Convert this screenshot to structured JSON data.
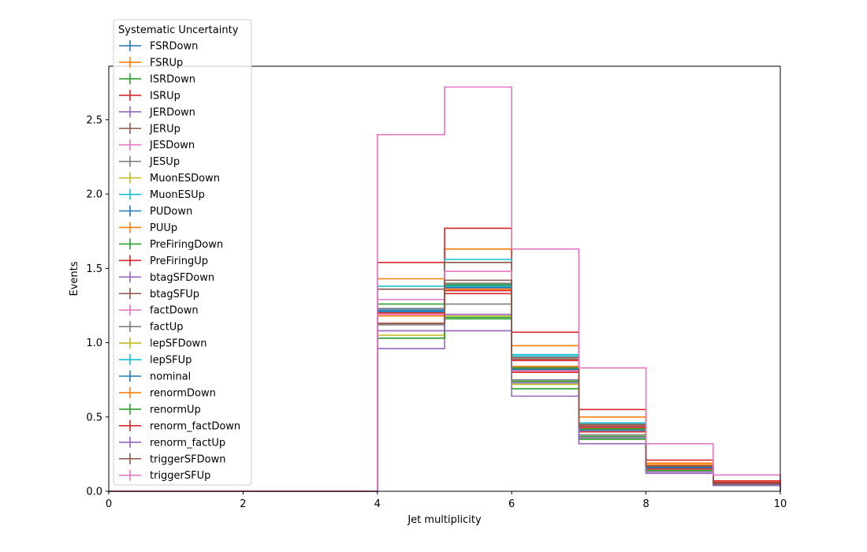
{
  "chart_data": {
    "type": "step",
    "xlabel": "Jet multiplicity",
    "ylabel": "Events",
    "xlim": [
      0,
      10
    ],
    "ylim": [
      0,
      2.86
    ],
    "xticks": [
      "0",
      "2",
      "4",
      "6",
      "8",
      "10"
    ],
    "yticks": [
      "0.0",
      "0.5",
      "1.0",
      "1.5",
      "2.0",
      "2.5"
    ],
    "bin_edges": [
      0,
      1,
      2,
      3,
      4,
      5,
      6,
      7,
      8,
      9,
      10
    ],
    "legend_title": "Systematic Uncertainty",
    "legend_position": "upper-left",
    "grid": false,
    "series": [
      {
        "name": "FSRDown",
        "color": "#1f77b4",
        "values": [
          0,
          0,
          0,
          0,
          1.21,
          1.38,
          0.82,
          0.41,
          0.16,
          0.05
        ]
      },
      {
        "name": "FSRUp",
        "color": "#ff7f0e",
        "values": [
          0,
          0,
          0,
          0,
          1.43,
          1.63,
          0.98,
          0.5,
          0.19,
          0.06
        ]
      },
      {
        "name": "ISRDown",
        "color": "#2ca02c",
        "values": [
          0,
          0,
          0,
          0,
          1.03,
          1.16,
          0.69,
          0.35,
          0.14,
          0.04
        ]
      },
      {
        "name": "ISRUp",
        "color": "#d62728",
        "values": [
          0,
          0,
          0,
          0,
          1.54,
          1.77,
          1.07,
          0.55,
          0.21,
          0.07
        ]
      },
      {
        "name": "JERDown",
        "color": "#9467bd",
        "values": [
          0,
          0,
          0,
          0,
          1.21,
          1.38,
          0.83,
          0.41,
          0.16,
          0.05
        ]
      },
      {
        "name": "JERUp",
        "color": "#8c564b",
        "values": [
          0,
          0,
          0,
          0,
          1.21,
          1.38,
          0.83,
          0.42,
          0.16,
          0.05
        ]
      },
      {
        "name": "JESDown",
        "color": "#e377c2",
        "values": [
          0,
          0,
          0,
          0,
          1.19,
          1.35,
          0.81,
          0.4,
          0.15,
          0.05
        ]
      },
      {
        "name": "JESUp",
        "color": "#7f7f7f",
        "values": [
          0,
          0,
          0,
          0,
          1.23,
          1.4,
          0.84,
          0.42,
          0.16,
          0.05
        ]
      },
      {
        "name": "MuonESDown",
        "color": "#bcbd22",
        "values": [
          0,
          0,
          0,
          0,
          1.2,
          1.37,
          0.82,
          0.41,
          0.16,
          0.05
        ]
      },
      {
        "name": "MuonESUp",
        "color": "#17becf",
        "values": [
          0,
          0,
          0,
          0,
          1.38,
          1.56,
          0.91,
          0.45,
          0.17,
          0.05
        ]
      },
      {
        "name": "PUDown",
        "color": "#1f77b4",
        "values": [
          0,
          0,
          0,
          0,
          1.22,
          1.39,
          0.83,
          0.42,
          0.16,
          0.05
        ]
      },
      {
        "name": "PUUp",
        "color": "#ff7f0e",
        "values": [
          0,
          0,
          0,
          0,
          1.18,
          1.36,
          0.82,
          0.41,
          0.15,
          0.05
        ]
      },
      {
        "name": "PreFiringDown",
        "color": "#2ca02c",
        "values": [
          0,
          0,
          0,
          0,
          1.26,
          1.39,
          0.83,
          0.42,
          0.16,
          0.05
        ]
      },
      {
        "name": "PreFiringUp",
        "color": "#d62728",
        "values": [
          0,
          0,
          0,
          0,
          1.2,
          1.33,
          0.8,
          0.4,
          0.15,
          0.05
        ]
      },
      {
        "name": "btagSFDown",
        "color": "#9467bd",
        "values": [
          0,
          0,
          0,
          0,
          0.96,
          1.08,
          0.64,
          0.32,
          0.12,
          0.04
        ]
      },
      {
        "name": "btagSFUp",
        "color": "#8c564b",
        "values": [
          0,
          0,
          0,
          0,
          1.36,
          1.54,
          0.9,
          0.45,
          0.17,
          0.05
        ]
      },
      {
        "name": "factDown",
        "color": "#e377c2",
        "values": [
          0,
          0,
          0,
          0,
          1.29,
          1.48,
          0.88,
          0.44,
          0.17,
          0.05
        ]
      },
      {
        "name": "factUp",
        "color": "#7f7f7f",
        "values": [
          0,
          0,
          0,
          0,
          1.12,
          1.26,
          0.75,
          0.38,
          0.14,
          0.04
        ]
      },
      {
        "name": "lepSFDown",
        "color": "#bcbd22",
        "values": [
          0,
          0,
          0,
          0,
          1.05,
          1.18,
          0.72,
          0.36,
          0.14,
          0.04
        ]
      },
      {
        "name": "lepSFUp",
        "color": "#17becf",
        "values": [
          0,
          0,
          0,
          0,
          1.21,
          1.38,
          0.92,
          0.46,
          0.17,
          0.05
        ]
      },
      {
        "name": "nominal",
        "color": "#1f77b4",
        "values": [
          0,
          0,
          0,
          0,
          1.21,
          1.37,
          0.82,
          0.41,
          0.16,
          0.05
        ]
      },
      {
        "name": "renormDown",
        "color": "#ff7f0e",
        "values": [
          0,
          0,
          0,
          0,
          1.18,
          1.36,
          0.84,
          0.43,
          0.18,
          0.06
        ]
      },
      {
        "name": "renormUp",
        "color": "#2ca02c",
        "values": [
          0,
          0,
          0,
          0,
          1.03,
          1.17,
          0.74,
          0.37,
          0.14,
          0.04
        ]
      },
      {
        "name": "renorm_factDown",
        "color": "#d62728",
        "values": [
          0,
          0,
          0,
          0,
          1.13,
          1.35,
          0.88,
          0.43,
          0.17,
          0.06
        ]
      },
      {
        "name": "renorm_factUp",
        "color": "#9467bd",
        "values": [
          0,
          0,
          0,
          0,
          1.08,
          1.19,
          0.73,
          0.36,
          0.13,
          0.04
        ]
      },
      {
        "name": "triggerSFDown",
        "color": "#8c564b",
        "values": [
          0,
          0,
          0,
          0,
          1.13,
          1.42,
          0.89,
          0.44,
          0.17,
          0.05
        ]
      },
      {
        "name": "triggerSFUp",
        "color": "#e377c2",
        "values": [
          0,
          0,
          0,
          0,
          2.4,
          2.72,
          1.63,
          0.83,
          0.32,
          0.11
        ]
      }
    ]
  }
}
